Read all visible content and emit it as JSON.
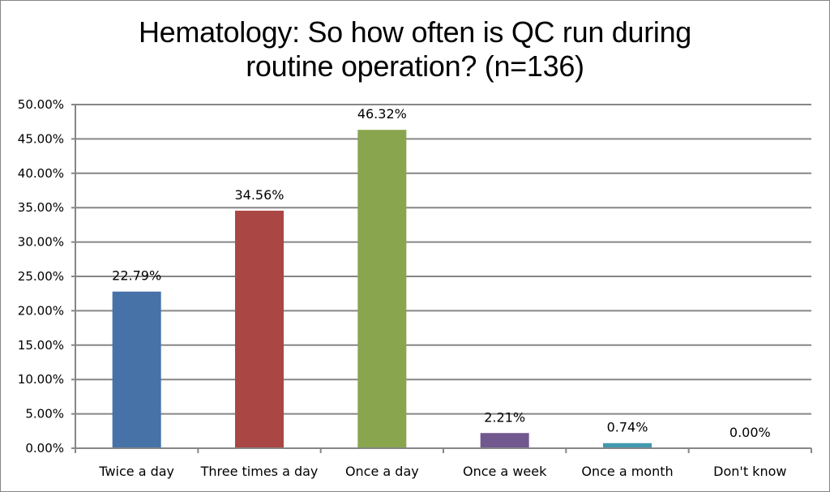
{
  "chart_data": {
    "type": "bar",
    "title": "Hematology: So how often is QC run during routine operation? (n=136)",
    "title_lines": [
      "Hematology: So how often is QC run during",
      "routine operation? (n=136)"
    ],
    "categories": [
      "Twice a day",
      "Three times a day",
      "Once a day",
      "Once a week",
      "Once a month",
      "Don't know"
    ],
    "values": [
      22.79,
      34.56,
      46.32,
      2.21,
      0.74,
      0.0
    ],
    "data_labels": [
      "22.79%",
      "34.56%",
      "46.32%",
      "2.21%",
      "0.74%",
      "0.00%"
    ],
    "colors": [
      "#4672A8",
      "#AA4643",
      "#89A54E",
      "#71588F",
      "#4198AF",
      "#DB843D"
    ],
    "xlabel": "",
    "ylabel": "",
    "ylim": [
      0,
      50
    ],
    "yticks": [
      "0.00%",
      "5.00%",
      "10.00%",
      "15.00%",
      "20.00%",
      "25.00%",
      "30.00%",
      "35.00%",
      "40.00%",
      "45.00%",
      "50.00%"
    ],
    "grid": true,
    "legend": "none"
  }
}
